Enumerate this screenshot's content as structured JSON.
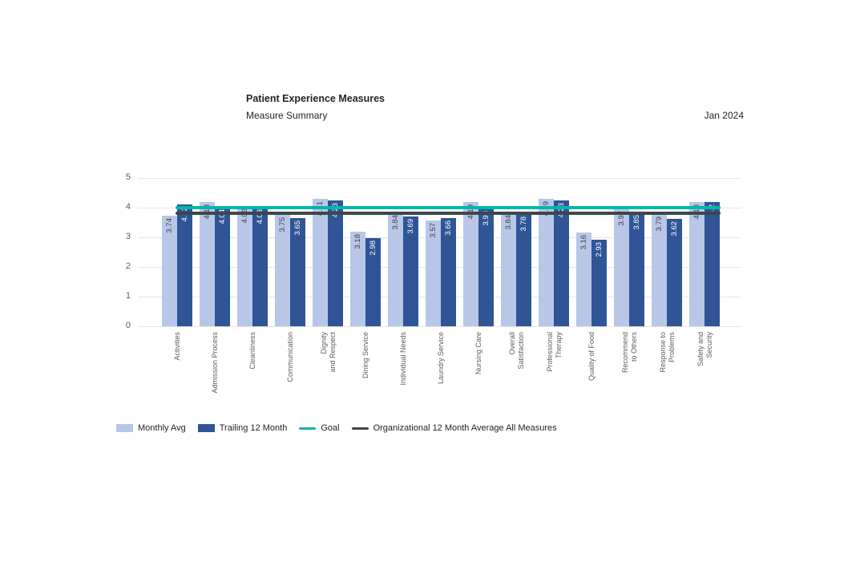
{
  "header": {
    "title_note": "header text is bound from chart_data"
  },
  "chart_data": {
    "type": "bar",
    "title": "Patient Experience Measures",
    "subtitle": "Measure Summary",
    "period": "Jan 2024",
    "xlabel": "",
    "ylabel": "",
    "ylim": [
      0,
      5
    ],
    "yticks": [
      0,
      1,
      2,
      3,
      4,
      5
    ],
    "grid": true,
    "legend_position": "bottom",
    "categories": [
      "Activities",
      "Admission Process",
      "Cleanliness",
      "Communication",
      "Dignity\nand Respect",
      "Dining Service",
      "Individual Needs",
      "Laundry Service",
      "Nursing Care",
      "Overall\nSatisfaction",
      "Professional\nTherapy",
      "Quality of Food",
      "Recommend\nto Others",
      "Response to\nProblems",
      "Safety and\nSecurity"
    ],
    "series": [
      {
        "name": "Monthly Avg",
        "color": "#b8c7e8",
        "label_color": "#404040",
        "values": [
          3.74,
          4.18,
          4.06,
          3.75,
          4.31,
          3.18,
          3.84,
          3.57,
          4.19,
          3.84,
          4.29,
          3.16,
          3.97,
          3.79,
          4.18
        ]
      },
      {
        "name": "Trailing 12 Month",
        "color": "#2f5597",
        "label_color": "#ffffff",
        "values": [
          4.12,
          4.04,
          4.03,
          3.65,
          4.23,
          2.98,
          3.69,
          3.66,
          3.98,
          3.78,
          4.23,
          2.93,
          3.85,
          3.62,
          4.2
        ]
      }
    ],
    "lines": [
      {
        "name": "Goal",
        "color": "#00b8aa",
        "value": 4.0
      },
      {
        "name": "Organizational 12 Month Average All Measures",
        "color": "#3d4749",
        "value": 3.8
      }
    ]
  }
}
